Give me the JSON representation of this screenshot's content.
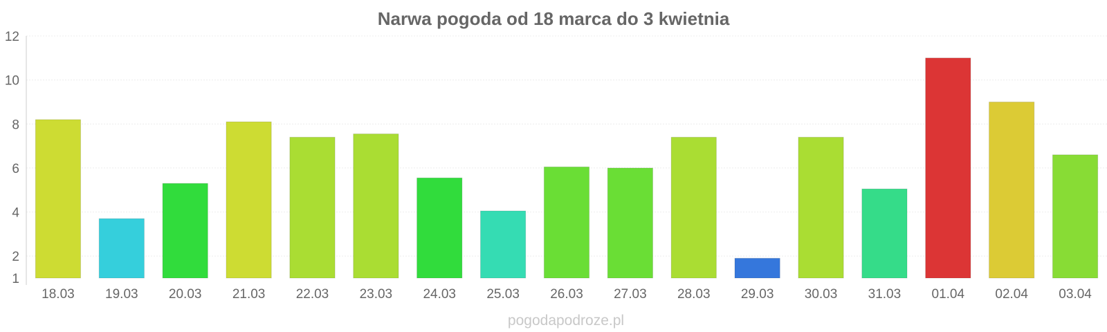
{
  "chart_data": {
    "type": "bar",
    "title": "Narwa pogoda od 18 marca do 3 kwietnia",
    "categories": [
      "18.03",
      "19.03",
      "20.03",
      "21.03",
      "22.03",
      "23.03",
      "24.03",
      "25.03",
      "26.03",
      "27.03",
      "28.03",
      "29.03",
      "30.03",
      "31.03",
      "01.04",
      "02.04",
      "03.04"
    ],
    "values": [
      8.2,
      3.7,
      5.3,
      8.1,
      7.4,
      7.55,
      5.55,
      4.05,
      6.05,
      6.0,
      7.4,
      1.9,
      7.4,
      5.05,
      11.0,
      9.0,
      6.6
    ],
    "colors": [
      "#cddc33",
      "#35cfdc",
      "#31dc3c",
      "#cddc33",
      "#aadd33",
      "#aadd33",
      "#31dc3c",
      "#35dcb3",
      "#6ade35",
      "#6ade35",
      "#aadd33",
      "#3577dc",
      "#aadd33",
      "#35dc89",
      "#dc3535",
      "#dccb35",
      "#88dc35"
    ],
    "ylim": [
      1,
      12
    ],
    "yticks": [
      1,
      2,
      4,
      6,
      8,
      10,
      12
    ],
    "grid": true,
    "legend": "none",
    "watermark": "pogodapodroze.pl"
  }
}
